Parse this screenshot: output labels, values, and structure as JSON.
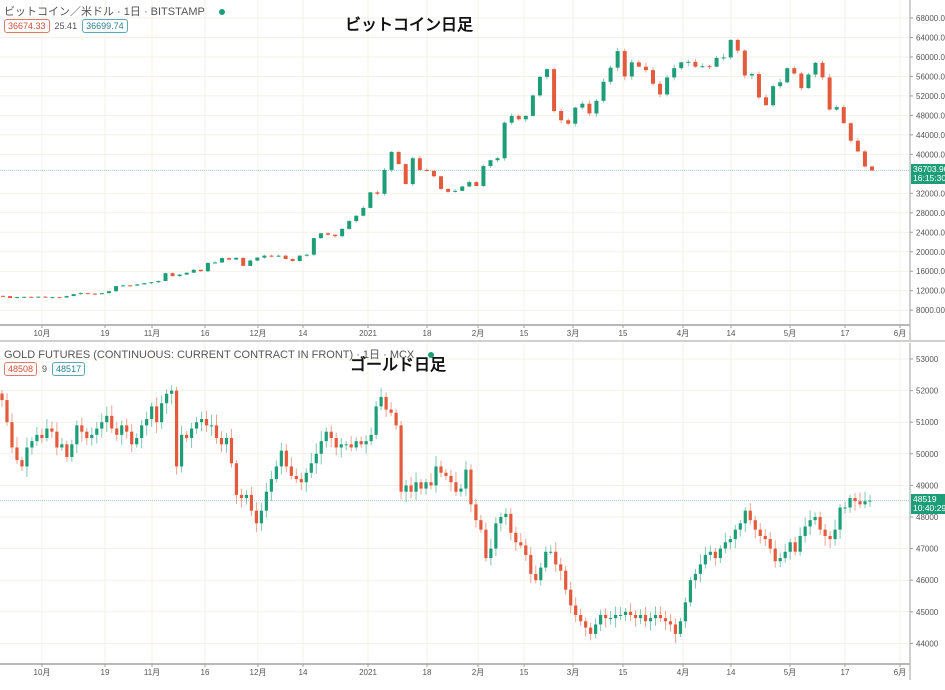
{
  "colors": {
    "up": "#1e9e78",
    "down": "#e35a3c",
    "grid": "#f3f1e6",
    "axis": "#a0a0a0",
    "last_line": "#9fcfc8"
  },
  "x_ticks": [
    "10月",
    "19",
    "11月",
    "16",
    "12月",
    "14",
    "2021",
    "18",
    "2月",
    "15",
    "3月",
    "15",
    "4月",
    "14",
    "5月",
    "17",
    "6月"
  ],
  "chart_data": [
    {
      "type": "candlestick",
      "title": "ビットコイン日足",
      "symbol_line": "ビットコイン／米ドル · 1日 · BITSTAMP",
      "legend_values": [
        "36674.33",
        "25.41",
        "36699.74"
      ],
      "last_price": "36703.90",
      "countdown": "16:15:30",
      "last_value": 36703.9,
      "ylim": [
        5000,
        69500
      ],
      "y_ticks": [
        68000,
        64000,
        60000,
        56000,
        52000,
        48000,
        44000,
        40000,
        32000,
        28000,
        24000,
        20000,
        16000,
        12000,
        8000
      ],
      "y_tick_labels": [
        "68000.00",
        "64000.00",
        "60000.00",
        "56000.00",
        "52000.00",
        "48000.00",
        "44000.00",
        "40000.00",
        "32000.00",
        "28000.00",
        "24000.00",
        "20000.00",
        "16000.00",
        "12000.00",
        "8000.00"
      ],
      "close": [
        10900,
        10500,
        10700,
        10750,
        10700,
        10780,
        10600,
        10680,
        10600,
        10900,
        11300,
        11500,
        11400,
        11350,
        11500,
        11900,
        12950,
        13100,
        13050,
        13300,
        13550,
        13750,
        14000,
        15600,
        15000,
        15300,
        15700,
        16300,
        16000,
        17700,
        17800,
        18700,
        18400,
        18750,
        17100,
        18200,
        18800,
        19200,
        19100,
        19200,
        18500,
        18100,
        19200,
        19400,
        22800,
        23800,
        23500,
        23200,
        24700,
        26300,
        27400,
        29000,
        32200,
        31900,
        36800,
        40500,
        38000,
        33900,
        39200,
        36800,
        36600,
        35500,
        32900,
        32300,
        32500,
        33400,
        34300,
        33500,
        37600,
        38800,
        39200,
        46500,
        47900,
        47200,
        47900,
        52100,
        55900,
        57500,
        48900,
        47000,
        46300,
        49600,
        50400,
        48400,
        51000,
        54900,
        57800,
        61200,
        56000,
        58900,
        58000,
        57300,
        54500,
        52300,
        55800,
        57700,
        58900,
        59000,
        58000,
        58100,
        58000,
        59800,
        59900,
        63500,
        61300,
        56200,
        56500,
        51700,
        50100,
        54000,
        54800,
        57700,
        56600,
        53600,
        56400,
        58800,
        55800,
        49200,
        49700,
        46400,
        42800,
        40600,
        37500,
        36700
      ]
    },
    {
      "type": "candlestick",
      "title": "ゴールド日足",
      "symbol_line": "GOLD FUTURES (CONTINUOUS: CURRENT CONTRACT IN FRONT) · 1日 · MCX",
      "legend_values": [
        "48508",
        "9",
        "48517"
      ],
      "last_price": "48519",
      "countdown": "10:40:29",
      "last_value": 48519,
      "ylim": [
        43300,
        53300
      ],
      "y_ticks": [
        53000,
        52000,
        51000,
        50000,
        49000,
        48000,
        47000,
        46000,
        45000,
        44000
      ],
      "y_tick_labels": [
        "53000",
        "52000",
        "51000",
        "50000",
        "49000",
        "48000",
        "47000",
        "46000",
        "45000",
        "44000"
      ],
      "close": [
        51700,
        51000,
        50200,
        49800,
        49600,
        50200,
        50400,
        50600,
        50500,
        50800,
        50700,
        50200,
        50300,
        49900,
        50300,
        50900,
        50700,
        50500,
        50600,
        50800,
        51000,
        51200,
        50800,
        50600,
        50900,
        50700,
        50300,
        50500,
        50900,
        51100,
        51500,
        51000,
        51600,
        51900,
        52000,
        49600,
        50600,
        50500,
        50800,
        51000,
        51100,
        50900,
        50900,
        50500,
        50300,
        50500,
        49700,
        48700,
        48600,
        48700,
        48200,
        47800,
        48200,
        48800,
        49200,
        49600,
        50100,
        49600,
        49300,
        49200,
        49100,
        49400,
        49700,
        50000,
        50400,
        50700,
        50500,
        50200,
        50300,
        50300,
        50200,
        50400,
        50300,
        50400,
        50600,
        51500,
        51800,
        51400,
        51300,
        50900,
        48800,
        49000,
        48800,
        49100,
        48900,
        49100,
        49000,
        49600,
        49400,
        49300,
        49100,
        48800,
        48900,
        49500,
        48400,
        47900,
        47600,
        46700,
        47000,
        47800,
        48000,
        48100,
        47500,
        47200,
        47100,
        46800,
        46200,
        46000,
        46400,
        46900,
        46900,
        46500,
        46300,
        45700,
        45200,
        44900,
        44700,
        44500,
        44300,
        44600,
        44900,
        44800,
        44800,
        44900,
        44900,
        45000,
        44900,
        44800,
        44900,
        44700,
        44800,
        44900,
        44800,
        44700,
        44600,
        44300,
        44700,
        45300,
        46000,
        46200,
        46500,
        46800,
        46900,
        46700,
        47000,
        47200,
        47300,
        47600,
        47800,
        48200,
        47900,
        47600,
        47400,
        47300,
        47000,
        46600,
        46700,
        46900,
        47200,
        46900,
        47400,
        47700,
        47900,
        48000,
        47600,
        47400,
        47300,
        47600,
        48300,
        48300,
        48600,
        48500,
        48400,
        48500,
        48519
      ]
    }
  ]
}
